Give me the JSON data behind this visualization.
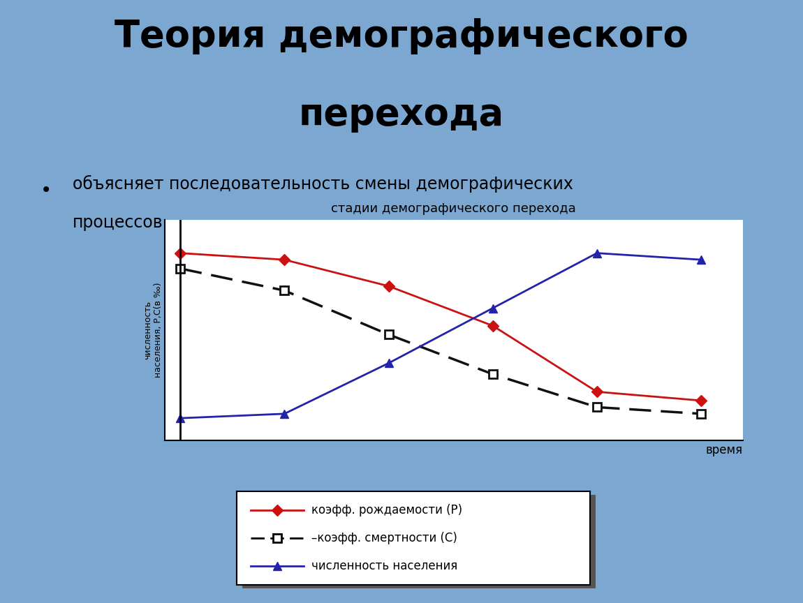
{
  "bg_color": "#7ba7d0",
  "title_line1": "Теория демографического",
  "title_line2": "перехода",
  "bullet_text_line1": "объясняет последовательность смены демографических",
  "bullet_text_line2": "процессов",
  "chart_title": "стадии демографического перехода",
  "xlabel": "время",
  "ylabel": "численность\nнаселения, Р,С(в ‰)",
  "red_x": [
    0,
    1,
    2,
    3,
    4,
    5
  ],
  "red_y": [
    0.85,
    0.82,
    0.7,
    0.52,
    0.22,
    0.18
  ],
  "black_x": [
    0,
    1,
    2,
    3,
    4,
    5
  ],
  "black_y": [
    0.78,
    0.68,
    0.48,
    0.3,
    0.15,
    0.12
  ],
  "blue_x": [
    0,
    1,
    2,
    3,
    4,
    5
  ],
  "blue_y": [
    0.1,
    0.12,
    0.35,
    0.6,
    0.85,
    0.82
  ],
  "red_color": "#cc1111",
  "black_color": "#111111",
  "blue_color": "#2222aa",
  "chart_bg": "#ffffff",
  "legend_label_birth": "коэфф. рождаемости (P)",
  "legend_label_death": "–коэфф. смертности (C)",
  "legend_label_pop": "численность населения"
}
